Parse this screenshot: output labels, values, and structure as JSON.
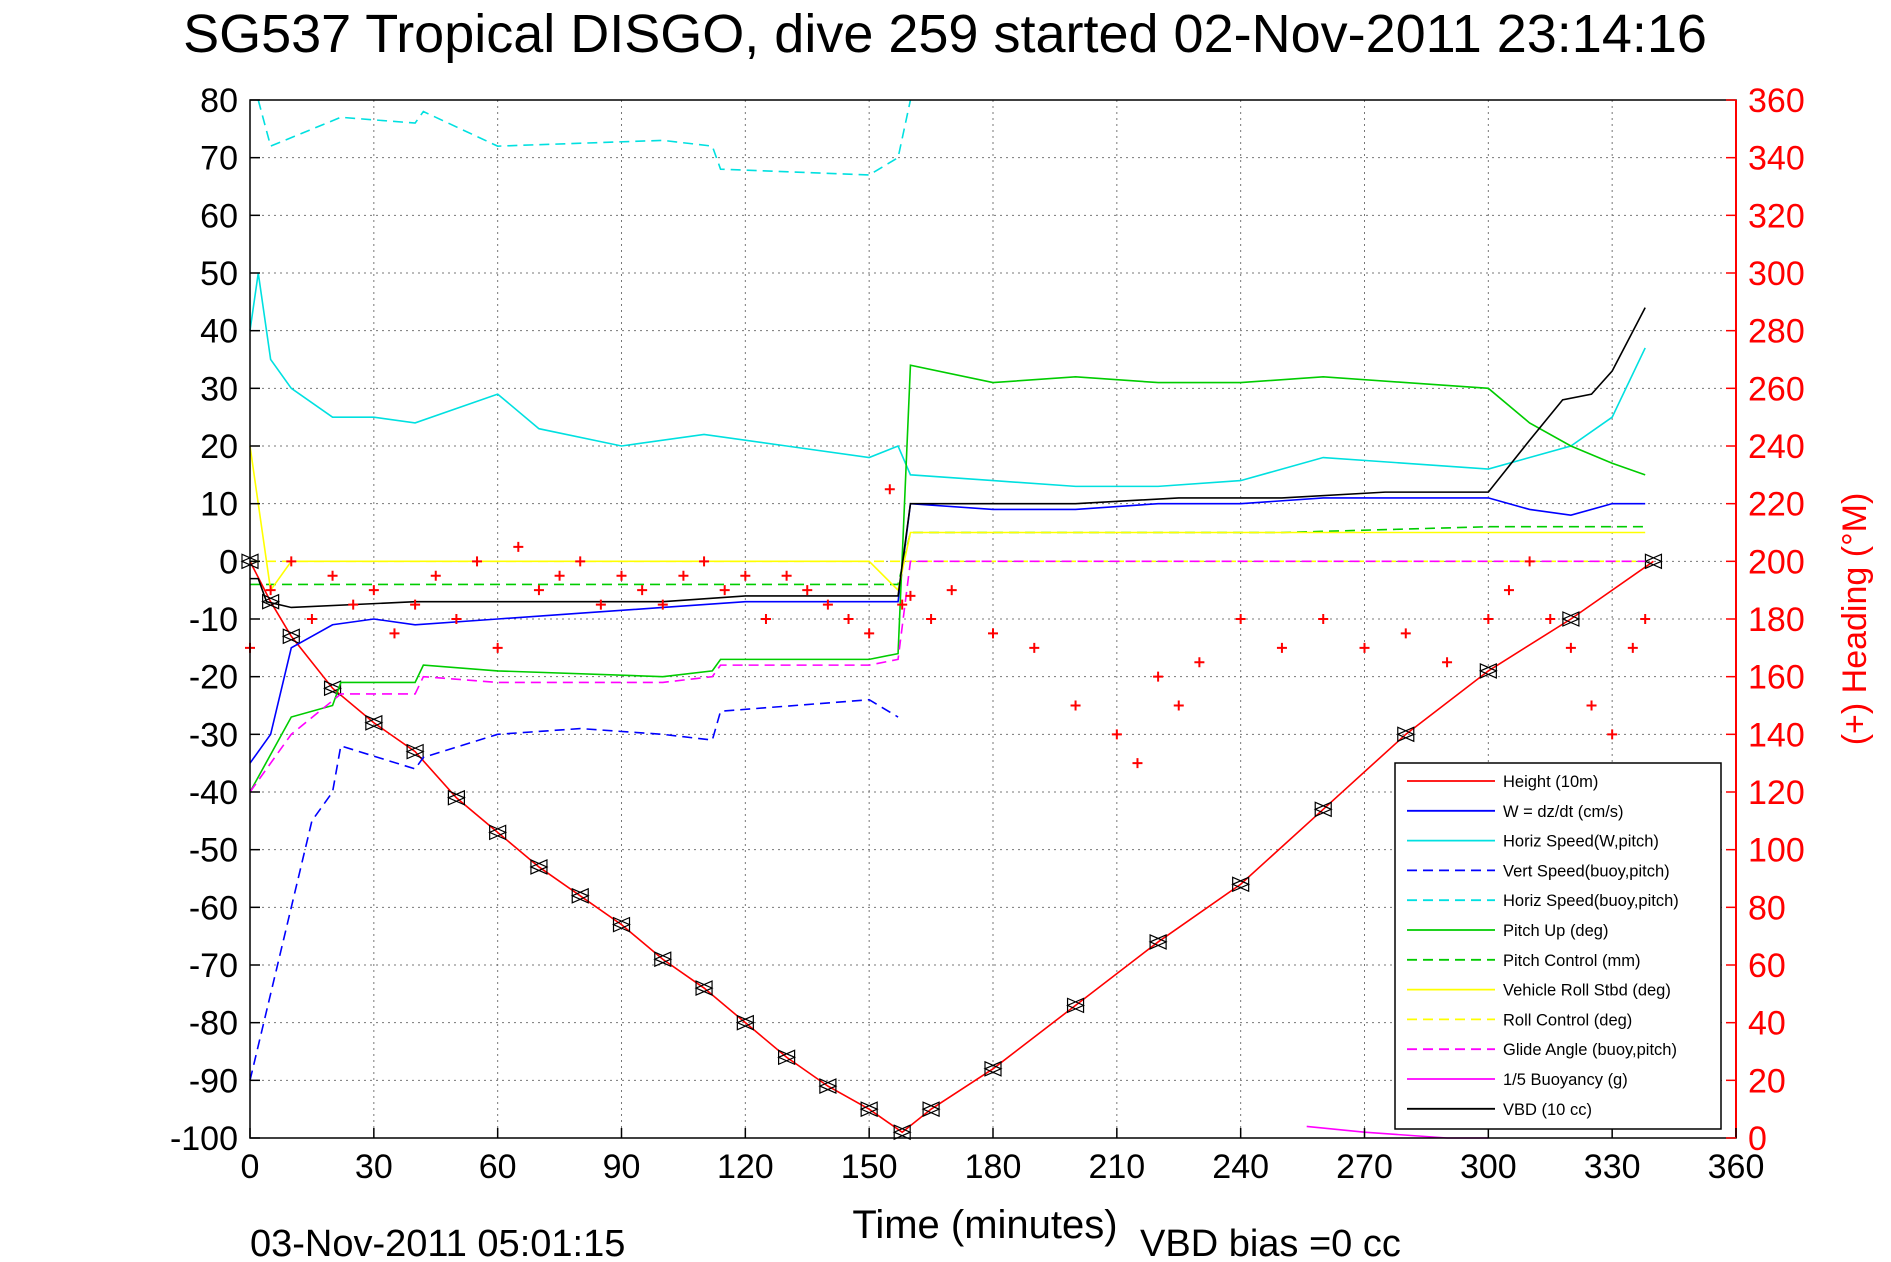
{
  "chart_data": {
    "type": "line",
    "title": "SG537 Tropical DISGO, dive 259 started 02-Nov-2011 23:14:16",
    "xlabel": "Time (minutes)",
    "ylabel_right": "(+) Heading (°M)",
    "xlim": [
      0,
      360
    ],
    "ylim": [
      -100,
      80
    ],
    "ylim_right": [
      0,
      360
    ],
    "x_ticks": [
      "0",
      "30",
      "60",
      "90",
      "120",
      "150",
      "180",
      "210",
      "240",
      "270",
      "300",
      "330",
      "360"
    ],
    "y_ticks": [
      "80",
      "70",
      "60",
      "50",
      "40",
      "30",
      "20",
      "10",
      "0",
      "-10",
      "-20",
      "-30",
      "-40",
      "-50",
      "-60",
      "-70",
      "-80",
      "-90",
      "-100"
    ],
    "y_ticks_right": [
      "360",
      "340",
      "320",
      "300",
      "280",
      "260",
      "240",
      "220",
      "200",
      "180",
      "160",
      "140",
      "120",
      "100",
      "80",
      "60",
      "40",
      "20",
      "0"
    ],
    "grid": true,
    "legend_position": "bottom-right",
    "footer_left": "03-Nov-2011 05:01:15",
    "footer_right": "VBD bias =0 cc",
    "series": [
      {
        "name": "Height (10m)",
        "color": "#ff0000",
        "style": "solid",
        "x": [
          0,
          5,
          10,
          20,
          30,
          40,
          50,
          60,
          70,
          80,
          90,
          100,
          110,
          120,
          130,
          140,
          150,
          158,
          165,
          180,
          200,
          220,
          240,
          260,
          280,
          300,
          320,
          340
        ],
        "y": [
          0,
          -7,
          -13,
          -22,
          -28,
          -33,
          -41,
          -47,
          -53,
          -58,
          -63,
          -69,
          -74,
          -80,
          -86,
          -91,
          -95,
          -99,
          -95,
          -88,
          -77,
          -66,
          -56,
          -43,
          -30,
          -19,
          -10,
          0
        ]
      },
      {
        "name": "W = dz/dt (cm/s)",
        "color": "#0000ff",
        "style": "solid",
        "x": [
          0,
          5,
          10,
          20,
          30,
          40,
          60,
          80,
          100,
          120,
          140,
          157,
          160,
          180,
          200,
          220,
          240,
          260,
          280,
          300,
          310,
          320,
          330,
          338
        ],
        "y": [
          -35,
          -30,
          -15,
          -11,
          -10,
          -11,
          -10,
          -9,
          -8,
          -7,
          -7,
          -7,
          10,
          9,
          9,
          10,
          10,
          11,
          11,
          11,
          9,
          8,
          10,
          10
        ]
      },
      {
        "name": "Horiz Speed(W,pitch)",
        "color": "#00e0e0",
        "style": "solid",
        "x": [
          0,
          2,
          5,
          10,
          20,
          30,
          40,
          60,
          70,
          90,
          110,
          130,
          150,
          157,
          160,
          180,
          200,
          220,
          240,
          260,
          280,
          300,
          320,
          330,
          338
        ],
        "y": [
          40,
          50,
          35,
          30,
          25,
          25,
          24,
          29,
          23,
          20,
          22,
          20,
          18,
          20,
          15,
          14,
          13,
          13,
          14,
          18,
          17,
          16,
          20,
          25,
          37
        ]
      },
      {
        "name": "Vert Speed(buoy,pitch)",
        "color": "#0000ff",
        "style": "dashed",
        "x": [
          0,
          5,
          10,
          15,
          20,
          22,
          40,
          42,
          60,
          80,
          100,
          112,
          114,
          150,
          157
        ],
        "y": [
          -90,
          -75,
          -60,
          -45,
          -40,
          -32,
          -36,
          -34,
          -30,
          -29,
          -30,
          -31,
          -26,
          -24,
          -27
        ]
      },
      {
        "name": "Horiz Speed(buoy,pitch)",
        "color": "#00e0e0",
        "style": "dashed",
        "x": [
          2,
          5,
          22,
          40,
          42,
          60,
          100,
          112,
          114,
          150,
          157,
          160
        ],
        "y": [
          80,
          72,
          77,
          76,
          78,
          72,
          73,
          72,
          68,
          67,
          70,
          80
        ]
      },
      {
        "name": "Pitch Up (deg)",
        "color": "#00cc00",
        "style": "solid",
        "x": [
          0,
          10,
          20,
          22,
          40,
          42,
          60,
          100,
          112,
          114,
          150,
          157,
          160,
          180,
          200,
          220,
          240,
          260,
          280,
          300,
          310,
          320,
          330,
          338
        ],
        "y": [
          -40,
          -27,
          -25,
          -21,
          -21,
          -18,
          -19,
          -20,
          -19,
          -17,
          -17,
          -16,
          34,
          31,
          32,
          31,
          31,
          32,
          31,
          30,
          24,
          20,
          17,
          15
        ]
      },
      {
        "name": "Pitch Control (mm)",
        "color": "#00cc00",
        "style": "dashed",
        "x": [
          0,
          10,
          40,
          60,
          100,
          150,
          157,
          160,
          200,
          250,
          300,
          338
        ],
        "y": [
          -4,
          -4,
          -4,
          -4,
          -4,
          -4,
          -4,
          5,
          5,
          5,
          6,
          6
        ]
      },
      {
        "name": "Vehicle Roll Stbd (deg)",
        "color": "#ffff00",
        "style": "solid",
        "x": [
          0,
          5,
          10,
          20,
          30,
          60,
          100,
          150,
          157,
          160,
          200,
          250,
          300,
          338
        ],
        "y": [
          20,
          -5,
          0,
          0,
          0,
          0,
          0,
          0,
          -5,
          5,
          5,
          5,
          5,
          5
        ]
      },
      {
        "name": "Roll Control (deg)",
        "color": "#ffff00",
        "style": "dashed",
        "x": [
          0,
          50,
          100,
          157,
          160,
          200,
          250,
          300,
          338
        ],
        "y": [
          0,
          0,
          0,
          0,
          0,
          0,
          0,
          0,
          0
        ]
      },
      {
        "name": "Glide Angle (buoy,pitch)",
        "color": "#ff00ff",
        "style": "dashed",
        "x": [
          0,
          10,
          22,
          40,
          42,
          60,
          100,
          112,
          114,
          150,
          157,
          160,
          200,
          250,
          300,
          338
        ],
        "y": [
          -40,
          -30,
          -23,
          -23,
          -20,
          -21,
          -21,
          -20,
          -18,
          -18,
          -17,
          0,
          0,
          0,
          0,
          0
        ]
      },
      {
        "name": "1/5 Buoyancy (g)",
        "color": "#ff00ff",
        "style": "solid",
        "x": [
          256,
          270,
          290,
          300
        ],
        "y": [
          -98,
          -99,
          -100,
          -100
        ]
      },
      {
        "name": "VBD (10 cc)",
        "color": "#000000",
        "style": "solid",
        "x": [
          0,
          2,
          4,
          10,
          40,
          60,
          80,
          100,
          120,
          157,
          160,
          200,
          225,
          250,
          275,
          300,
          310,
          318,
          325,
          330,
          338
        ],
        "y": [
          -3,
          -3,
          -7,
          -8,
          -7,
          -7,
          -7,
          -7,
          -6,
          -6,
          10,
          10,
          11,
          11,
          12,
          12,
          21,
          28,
          29,
          33,
          44
        ]
      },
      {
        "name": "(+) Heading (°M)",
        "color": "#ff0000",
        "style": "plus",
        "axis": "right",
        "x": [
          0,
          5,
          10,
          15,
          20,
          25,
          30,
          35,
          40,
          45,
          50,
          55,
          60,
          65,
          70,
          75,
          80,
          85,
          90,
          95,
          100,
          105,
          110,
          115,
          120,
          125,
          130,
          135,
          140,
          145,
          150,
          155,
          158,
          160,
          165,
          170,
          180,
          190,
          200,
          210,
          215,
          220,
          225,
          230,
          240,
          250,
          260,
          270,
          280,
          290,
          300,
          305,
          310,
          315,
          320,
          325,
          330,
          335,
          338
        ],
        "y": [
          170,
          190,
          200,
          180,
          195,
          185,
          190,
          175,
          185,
          195,
          180,
          200,
          170,
          205,
          190,
          195,
          200,
          185,
          195,
          190,
          185,
          195,
          200,
          190,
          195,
          180,
          195,
          190,
          185,
          180,
          175,
          225,
          185,
          188,
          180,
          190,
          175,
          170,
          150,
          140,
          130,
          160,
          150,
          165,
          180,
          170,
          180,
          170,
          175,
          165,
          180,
          190,
          200,
          180,
          170,
          150,
          140,
          170,
          180
        ]
      }
    ]
  },
  "legend": {
    "entries": [
      "Height (10m)",
      "W = dz/dt (cm/s)",
      "Horiz Speed(W,pitch)",
      "Vert Speed(buoy,pitch)",
      "Horiz Speed(buoy,pitch)",
      "Pitch Up (deg)",
      "Pitch Control (mm)",
      "Vehicle Roll Stbd (deg)",
      "Roll Control (deg)",
      "Glide Angle (buoy,pitch)",
      "1/5 Buoyancy (g)",
      "VBD (10 cc)"
    ]
  }
}
